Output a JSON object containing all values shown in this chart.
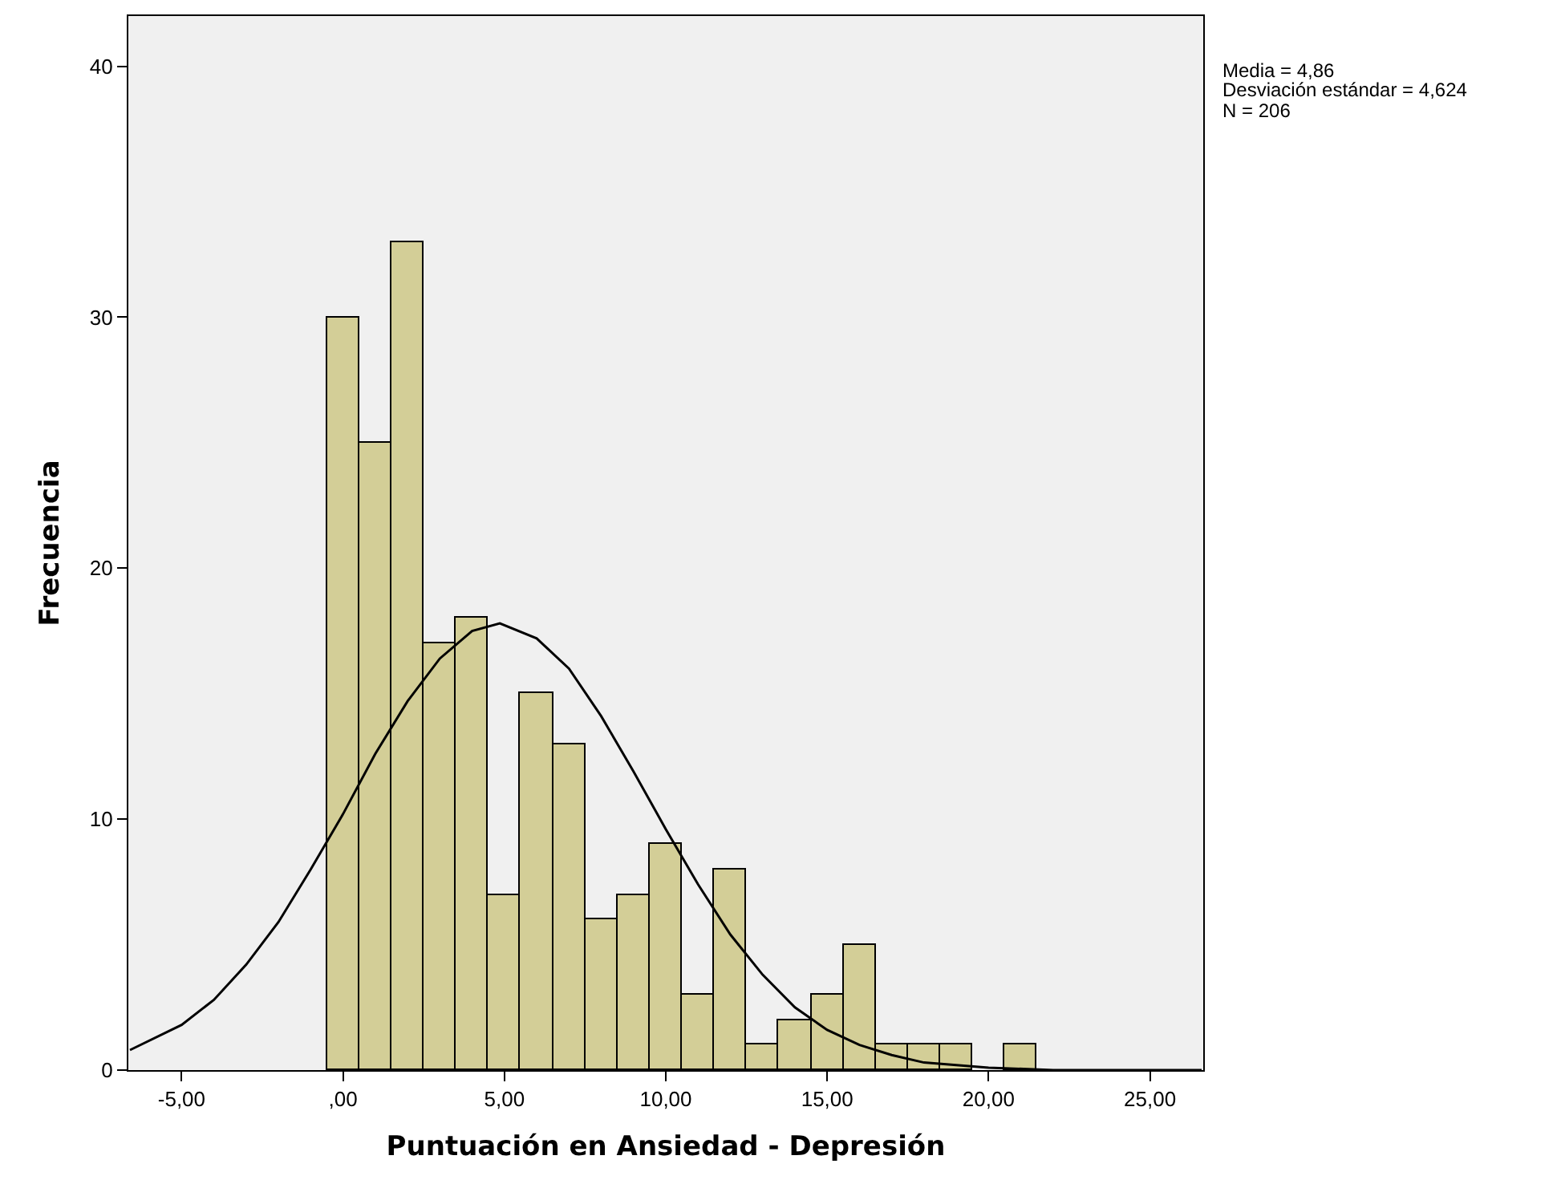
{
  "chart_data": {
    "type": "histogram",
    "xlabel": "Puntuación en Ansiedad - Depresión",
    "ylabel": "Frecuencia",
    "series": [
      {
        "color": "#d3ce97",
        "bins": [
          -0.5,
          0.5,
          1.5,
          2.5,
          3.5,
          4.5,
          5.5,
          6.5,
          7.5,
          8.5,
          9.5,
          10.5,
          11.5,
          12.5,
          13.5,
          14.5,
          15.5,
          16.5,
          17.5,
          18.5,
          19.5,
          20.5,
          21.5
        ],
        "values": [
          30,
          25,
          33,
          17,
          18,
          7,
          15,
          13,
          6,
          7,
          9,
          3,
          8,
          1,
          2,
          3,
          5,
          1,
          1,
          1,
          0,
          1
        ]
      },
      {
        "type": "line",
        "color": "#000000",
        "x": [
          -6.6,
          -5,
          -4,
          -3,
          -2,
          -1,
          0,
          1,
          2,
          3,
          4,
          4.86,
          6,
          7,
          8,
          9,
          10,
          11,
          12,
          13,
          14,
          15,
          16,
          17,
          18,
          19,
          20,
          22,
          24,
          26.6
        ],
        "values": [
          0.8,
          1.8,
          2.8,
          4.2,
          5.9,
          8.0,
          10.2,
          12.6,
          14.7,
          16.4,
          17.5,
          17.8,
          17.2,
          16.0,
          14.1,
          11.9,
          9.6,
          7.4,
          5.4,
          3.8,
          2.5,
          1.6,
          1.0,
          0.6,
          0.3,
          0.2,
          0.1,
          0,
          0,
          0
        ]
      }
    ],
    "xlim": [
      -6.65,
      26.65
    ],
    "xticks": [
      {
        "value": -5,
        "label": "-5,00"
      },
      {
        "value": 0,
        "label": ",00"
      },
      {
        "value": 5,
        "label": "5,00"
      },
      {
        "value": 10,
        "label": "10,00"
      },
      {
        "value": 15,
        "label": "15,00"
      },
      {
        "value": 20,
        "label": "20,00"
      },
      {
        "value": 25,
        "label": "25,00"
      }
    ],
    "ylim": [
      0,
      42
    ],
    "yticks": [
      0,
      10,
      20,
      30,
      40
    ],
    "grid": false,
    "marker": "none",
    "line_style": "solid",
    "annotations": [
      "Media = 4,86",
      "Desviación estándar = 4,624",
      "N = 206"
    ]
  }
}
